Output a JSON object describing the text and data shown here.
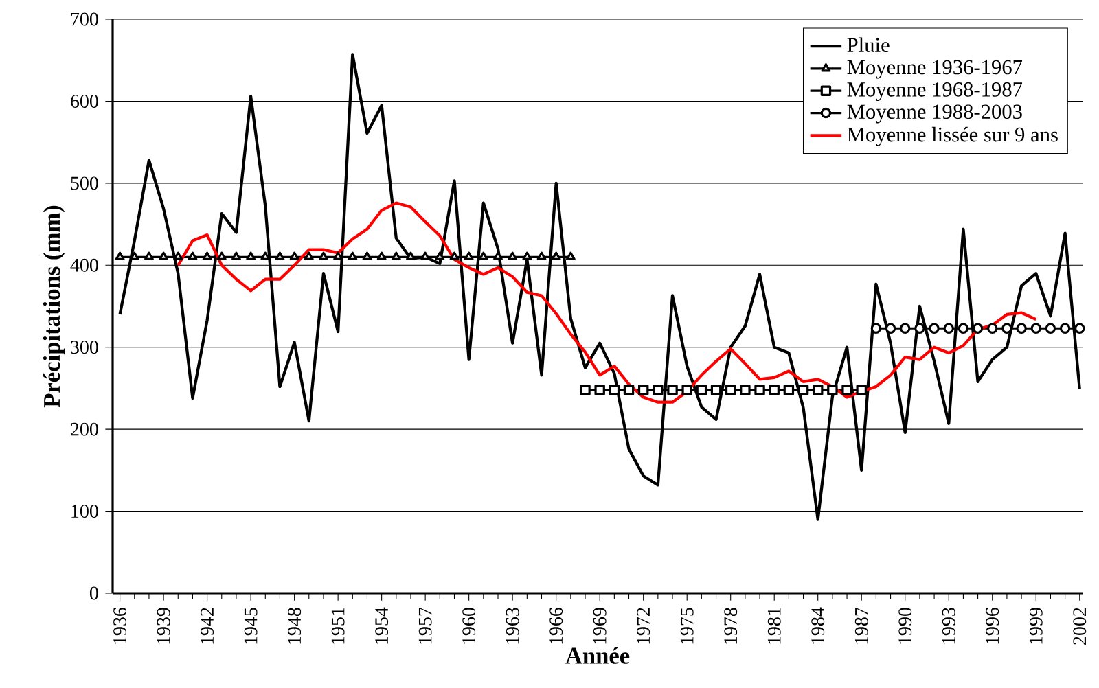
{
  "chart_data": {
    "type": "line",
    "xlabel": "Année",
    "ylabel": "Précipitations (mm)",
    "xlim": [
      1935.5,
      2002.2
    ],
    "ylim": [
      0,
      700
    ],
    "xticks": [
      1936,
      1939,
      1942,
      1945,
      1948,
      1951,
      1954,
      1957,
      1960,
      1963,
      1966,
      1969,
      1972,
      1975,
      1978,
      1981,
      1984,
      1987,
      1990,
      1993,
      1996,
      1999,
      2002
    ],
    "yticks": [
      0,
      100,
      200,
      300,
      400,
      500,
      600,
      700
    ],
    "grid": "y",
    "legend": "top right",
    "series": [
      {
        "name": "Pluie",
        "color": "#000000",
        "marker": "none",
        "x": [
          1936,
          1937,
          1938,
          1939,
          1940,
          1941,
          1942,
          1943,
          1944,
          1945,
          1946,
          1947,
          1948,
          1949,
          1950,
          1951,
          1952,
          1953,
          1954,
          1955,
          1956,
          1957,
          1958,
          1959,
          1960,
          1961,
          1962,
          1963,
          1964,
          1965,
          1966,
          1967,
          1968,
          1969,
          1970,
          1971,
          1972,
          1973,
          1974,
          1975,
          1976,
          1977,
          1978,
          1979,
          1980,
          1981,
          1982,
          1983,
          1984,
          1985,
          1986,
          1987,
          1988,
          1989,
          1990,
          1991,
          1992,
          1993,
          1994,
          1995,
          1996,
          1997,
          1998,
          1999,
          2000,
          2001,
          2002
        ],
        "values": [
          340,
          430,
          528,
          469,
          390,
          238,
          333,
          463,
          440,
          606,
          472,
          252,
          306,
          210,
          390,
          319,
          657,
          561,
          595,
          433,
          408,
          410,
          402,
          503,
          285,
          476,
          420,
          305,
          407,
          266,
          500,
          335,
          275,
          305,
          268,
          176,
          143,
          132,
          363,
          277,
          227,
          212,
          300,
          326,
          389,
          300,
          293,
          226,
          90,
          240,
          300,
          150,
          377,
          305,
          196,
          350,
          283,
          207,
          444,
          258,
          285,
          300,
          375,
          390,
          338,
          439,
          249
        ]
      },
      {
        "name": "Moyenne 1936-1967",
        "color": "#000000",
        "marker": "triangle",
        "x": [
          1936,
          1937,
          1938,
          1939,
          1940,
          1941,
          1942,
          1943,
          1944,
          1945,
          1946,
          1947,
          1948,
          1949,
          1950,
          1951,
          1952,
          1953,
          1954,
          1955,
          1956,
          1957,
          1958,
          1959,
          1960,
          1961,
          1962,
          1963,
          1964,
          1965,
          1966,
          1967
        ],
        "values": [
          410,
          410,
          410,
          410,
          410,
          410,
          410,
          410,
          410,
          410,
          410,
          410,
          410,
          410,
          410,
          410,
          410,
          410,
          410,
          410,
          410,
          410,
          410,
          410,
          410,
          410,
          410,
          410,
          410,
          410,
          410,
          410
        ]
      },
      {
        "name": "Moyenne 1968-1987",
        "color": "#000000",
        "marker": "square",
        "x": [
          1968,
          1969,
          1970,
          1971,
          1972,
          1973,
          1974,
          1975,
          1976,
          1977,
          1978,
          1979,
          1980,
          1981,
          1982,
          1983,
          1984,
          1985,
          1986,
          1987
        ],
        "values": [
          248,
          248,
          248,
          248,
          248,
          248,
          248,
          248,
          248,
          248,
          248,
          248,
          248,
          248,
          248,
          248,
          248,
          248,
          248,
          248
        ]
      },
      {
        "name": "Moyenne 1988-2003",
        "color": "#000000",
        "marker": "circle",
        "x": [
          1988,
          1989,
          1990,
          1991,
          1992,
          1993,
          1994,
          1995,
          1996,
          1997,
          1998,
          1999,
          2000,
          2001,
          2002
        ],
        "values": [
          323,
          323,
          323,
          323,
          323,
          323,
          323,
          323,
          323,
          323,
          323,
          323,
          323,
          323,
          323
        ]
      },
      {
        "name": "Moyenne lissée sur 9 ans",
        "color": "#ff0000",
        "marker": "none",
        "x": [
          1940,
          1941,
          1942,
          1943,
          1944,
          1945,
          1946,
          1947,
          1948,
          1949,
          1950,
          1951,
          1952,
          1953,
          1954,
          1955,
          1956,
          1957,
          1958,
          1959,
          1960,
          1961,
          1962,
          1963,
          1964,
          1965,
          1966,
          1967,
          1968,
          1969,
          1970,
          1971,
          1972,
          1973,
          1974,
          1975,
          1976,
          1977,
          1978,
          1979,
          1980,
          1981,
          1982,
          1983,
          1984,
          1985,
          1986,
          1987,
          1988,
          1989,
          1990,
          1991,
          1992,
          1993,
          1994,
          1995,
          1996,
          1997,
          1998,
          1999
        ],
        "values": [
          400,
          430,
          437,
          400,
          383,
          369,
          383,
          383,
          400,
          419,
          419,
          415,
          432,
          444,
          467,
          476,
          471,
          453,
          436,
          407,
          397,
          389,
          397,
          386,
          367,
          363,
          341,
          316,
          294,
          266,
          277,
          255,
          239,
          233,
          233,
          246,
          266,
          283,
          298,
          280,
          261,
          263,
          271,
          258,
          261,
          252,
          239,
          246,
          252,
          266,
          288,
          285,
          300,
          293,
          302,
          322,
          327,
          340,
          342,
          334
        ]
      }
    ]
  }
}
